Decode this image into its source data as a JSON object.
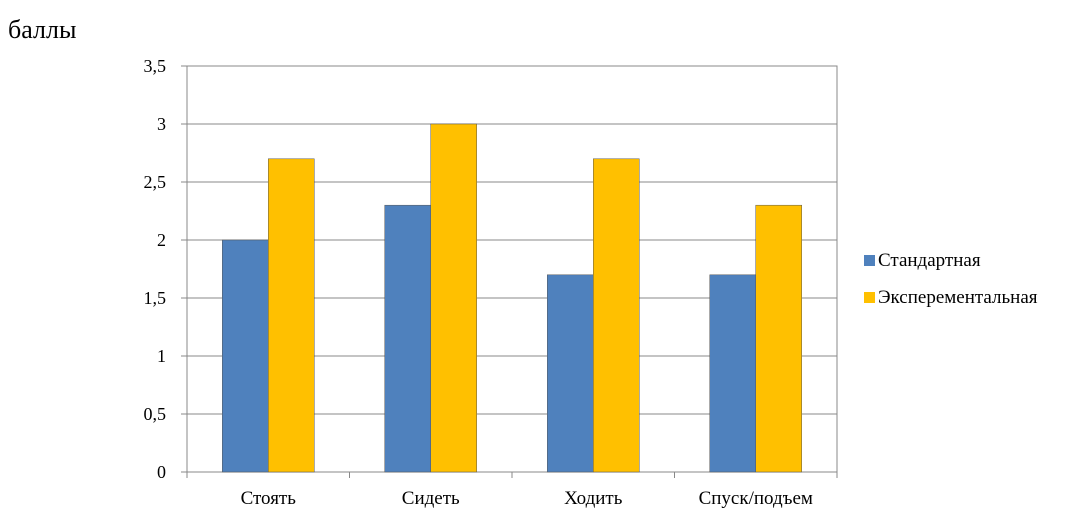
{
  "chart_data": {
    "type": "bar",
    "ylabel": "баллы",
    "xlabel": "",
    "title": "",
    "categories": [
      "Стоять",
      "Сидеть",
      "Ходить",
      "Спуск/подъем"
    ],
    "series": [
      {
        "name": "Стандартная",
        "values": [
          2,
          2.3,
          1.7,
          1.7
        ],
        "color": "#4F81BD"
      },
      {
        "name": "Эксперементальная",
        "values": [
          2.7,
          3,
          2.7,
          2.3
        ],
        "color": "#FFC000"
      }
    ],
    "ylim": [
      0,
      3.5
    ],
    "yticks": [
      "0",
      "0,5",
      "1",
      "1,5",
      "2",
      "2,5",
      "3",
      "3,5"
    ],
    "grid": true,
    "legend_position": "right"
  }
}
